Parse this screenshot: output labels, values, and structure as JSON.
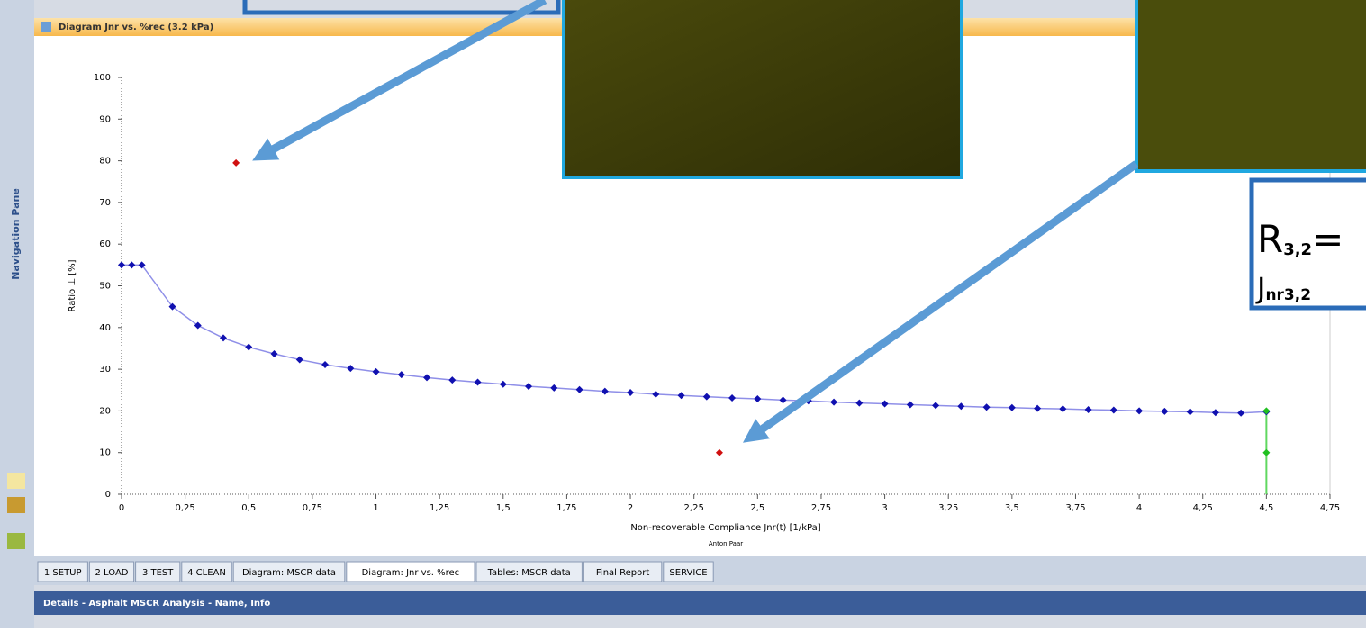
{
  "window": {
    "title": "Diagram Jnr vs. %rec (3.2 kPa)",
    "navigation": "Navigation Pane",
    "tabs": [
      "1 SETUP",
      "2 LOAD",
      "3 TEST",
      "4 CLEAN",
      "Diagram: MSCR data",
      "Diagram: Jnr vs. %rec",
      "Tables: MSCR data",
      "Final Report",
      "SERVICE"
    ],
    "active_tab": 5,
    "details": "Details - Asphalt MSCR Analysis - Name, Info"
  },
  "callout": {
    "r_main": "R",
    "r_sub": "3,2",
    "r_tail": "=",
    "j_main": "J",
    "j_sub": "nr3,2"
  },
  "chart_data": {
    "type": "scatter",
    "subtitle": "Anton Paar",
    "x_label": "Non-recoverable Compliance Jnr(t) [1/kPa]",
    "y_label": "Ratio ⊥ [%]",
    "xlim": [
      0,
      4.75
    ],
    "ylim": [
      0,
      100
    ],
    "xticks": [
      0,
      {
        "value": 0.25,
        "label": "0,25"
      },
      {
        "value": 0.5,
        "label": "0,5"
      },
      {
        "value": 0.75,
        "label": "0,75"
      },
      1,
      {
        "value": 1.25,
        "label": "1,25"
      },
      {
        "value": 1.5,
        "label": "1,5"
      },
      {
        "value": 1.75,
        "label": "1,75"
      },
      2,
      {
        "value": 2.25,
        "label": "2,25"
      },
      {
        "value": 2.5,
        "label": "2,5"
      },
      {
        "value": 2.75,
        "label": "2,75"
      },
      3,
      {
        "value": 3.25,
        "label": "3,25"
      },
      {
        "value": 3.5,
        "label": "3,5"
      },
      {
        "value": 3.75,
        "label": "3,75"
      },
      4,
      {
        "value": 4.25,
        "label": "4,25"
      },
      {
        "value": 4.5,
        "label": "4,5"
      },
      {
        "value": 4.75,
        "label": "4,75"
      }
    ],
    "yticks": [
      0,
      10,
      20,
      30,
      40,
      50,
      60,
      70,
      80,
      90,
      100
    ],
    "series": [
      {
        "color": "#1010b0",
        "line": true,
        "x": [
          0,
          0.04,
          0.08,
          0.2,
          0.3,
          0.4,
          0.5,
          0.6,
          0.7,
          0.8,
          0.9,
          1.0,
          1.1,
          1.2,
          1.3,
          1.4,
          1.5,
          1.6,
          1.7,
          1.8,
          1.9,
          2.0,
          2.1,
          2.2,
          2.3,
          2.4,
          2.5,
          2.6,
          2.7,
          2.8,
          2.9,
          3.0,
          3.1,
          3.2,
          3.3,
          3.4,
          3.5,
          3.6,
          3.7,
          3.8,
          3.9,
          4.0,
          4.1,
          4.2,
          4.3,
          4.4,
          4.5
        ],
        "values": [
          55,
          55,
          55,
          45,
          40.5,
          37.5,
          35.3,
          33.7,
          32.3,
          31.1,
          30.2,
          29.4,
          28.7,
          28,
          27.4,
          26.9,
          26.4,
          25.9,
          25.5,
          25.1,
          24.7,
          24.4,
          24,
          23.7,
          23.4,
          23.1,
          22.9,
          22.6,
          22.4,
          22.1,
          21.9,
          21.7,
          21.5,
          21.3,
          21.1,
          20.9,
          20.8,
          20.6,
          20.5,
          20.3,
          20.2,
          20,
          19.9,
          19.8,
          19.6,
          19.5,
          19.8
        ]
      },
      {
        "color": "#d01010",
        "line": false,
        "x": [
          0.45,
          2.35
        ],
        "values": [
          79.5,
          10
        ]
      },
      {
        "color": "#20c020",
        "line": false,
        "x": [
          4.5,
          4.5
        ],
        "values": [
          20,
          10
        ]
      }
    ],
    "vlines": [
      {
        "value": 4.5,
        "color": "#60d860"
      }
    ]
  }
}
